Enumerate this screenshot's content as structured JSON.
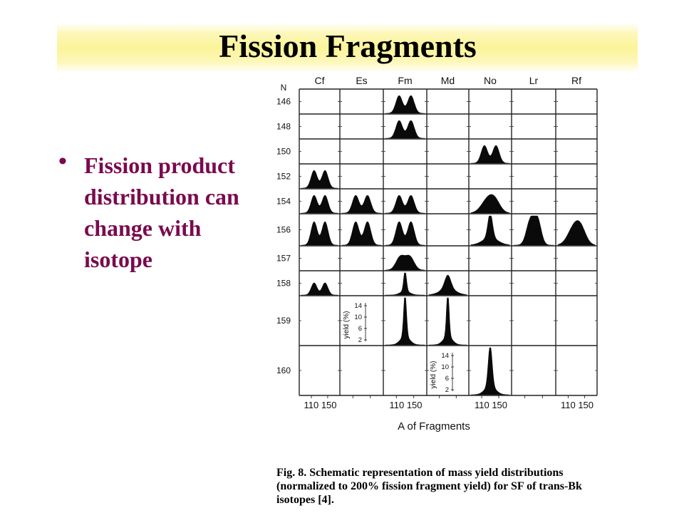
{
  "slide": {
    "title": "Fission Fragments",
    "bullet": "Fission product distribution can change with isotope",
    "bullet_color": "#7a0a4d",
    "title_band_color": "#fbf49a"
  },
  "figure": {
    "n_label": "N",
    "columns": [
      "Cf",
      "Es",
      "Fm",
      "Md",
      "No",
      "Lr",
      "Rf"
    ],
    "rows": [
      "146",
      "148",
      "150",
      "152",
      "154",
      "156",
      "157",
      "158",
      "159",
      "160"
    ],
    "x_axis_title": "A of Fragments",
    "x_tick_labels": [
      {
        "col": 0,
        "text": "110 150"
      },
      {
        "col": 2,
        "text": "110 150"
      },
      {
        "col": 4,
        "text": "110 150"
      },
      {
        "col": 6,
        "text": "110 150"
      }
    ],
    "yield_scales": [
      {
        "col": 1,
        "row": 8,
        "label": "yield (%)",
        "ticks": [
          "14",
          "10",
          "6",
          "2"
        ]
      },
      {
        "col": 3,
        "row": 9,
        "label": "yield (%)",
        "ticks": [
          "14",
          "10",
          "6",
          "2"
        ]
      }
    ],
    "distributions": [
      {
        "col": 2,
        "row": 0,
        "shape": "double"
      },
      {
        "col": 2,
        "row": 1,
        "shape": "double"
      },
      {
        "col": 4,
        "row": 2,
        "shape": "double"
      },
      {
        "col": 0,
        "row": 3,
        "shape": "double"
      },
      {
        "col": 0,
        "row": 4,
        "shape": "double"
      },
      {
        "col": 1,
        "row": 4,
        "shape": "double"
      },
      {
        "col": 2,
        "row": 4,
        "shape": "double"
      },
      {
        "col": 4,
        "row": 4,
        "shape": "broad"
      },
      {
        "col": 0,
        "row": 5,
        "shape": "double"
      },
      {
        "col": 1,
        "row": 5,
        "shape": "double"
      },
      {
        "col": 2,
        "row": 5,
        "shape": "double"
      },
      {
        "col": 4,
        "row": 5,
        "shape": "single"
      },
      {
        "col": 5,
        "row": 5,
        "shape": "double-close"
      },
      {
        "col": 6,
        "row": 5,
        "shape": "broad"
      },
      {
        "col": 2,
        "row": 6,
        "shape": "double-low"
      },
      {
        "col": 0,
        "row": 7,
        "shape": "double-small"
      },
      {
        "col": 2,
        "row": 7,
        "shape": "sharp"
      },
      {
        "col": 3,
        "row": 7,
        "shape": "single-wide"
      },
      {
        "col": 2,
        "row": 8,
        "shape": "sharp"
      },
      {
        "col": 3,
        "row": 8,
        "shape": "sharp"
      },
      {
        "col": 4,
        "row": 9,
        "shape": "sharp-med"
      }
    ],
    "caption": "Fig. 8. Schematic representation of mass yield distributions (normalized to 200% fission fragment yield) for SF of trans-Bk isotopes [4]."
  }
}
